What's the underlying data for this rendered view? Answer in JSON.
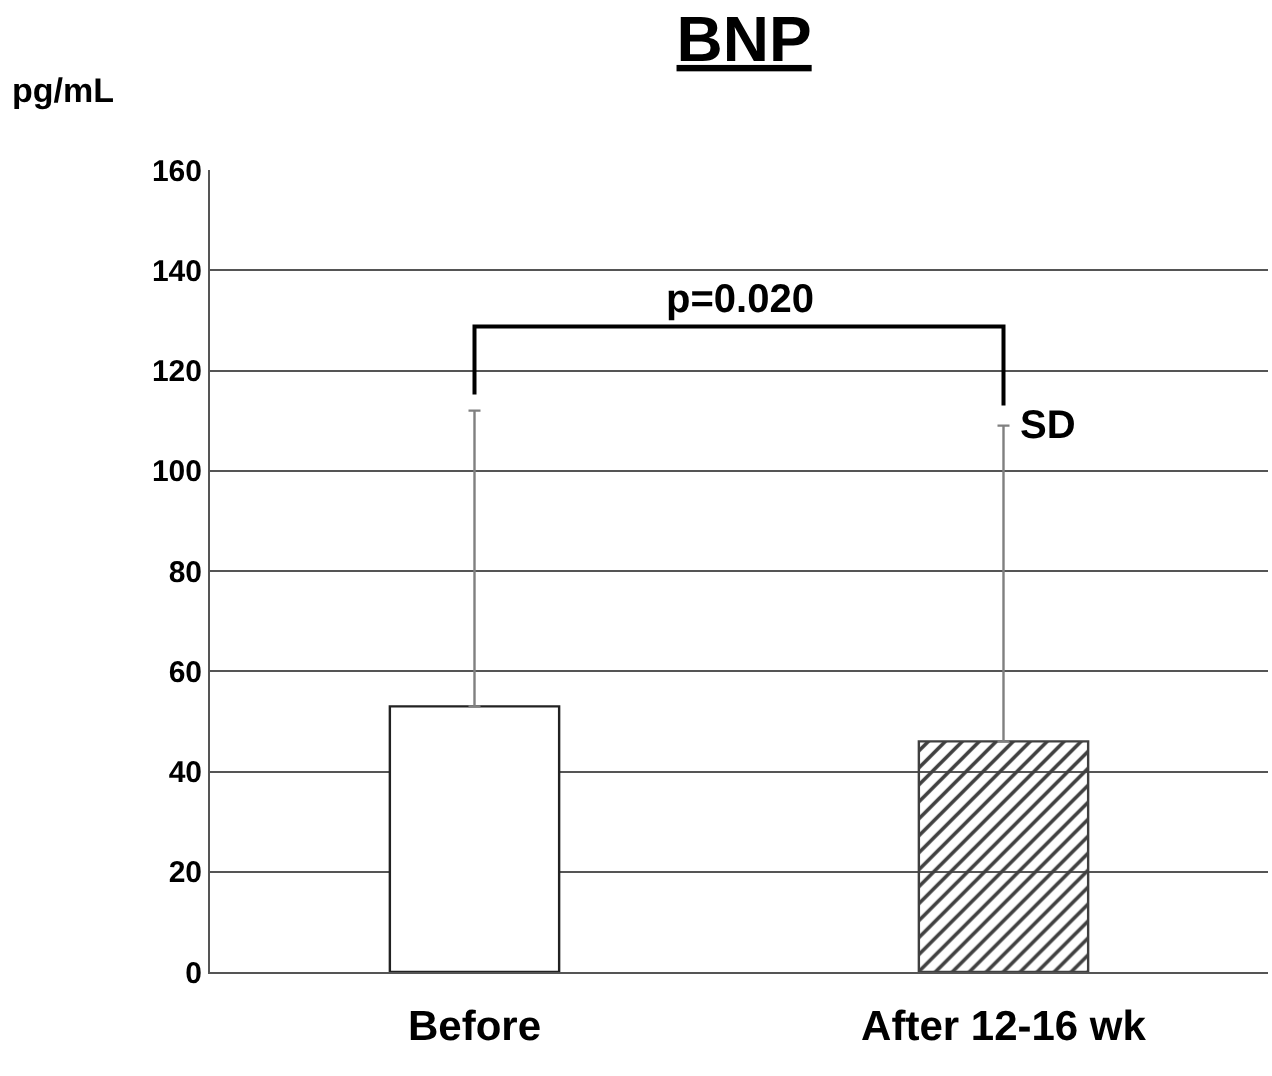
{
  "chart_data": {
    "type": "bar",
    "title": "BNP",
    "ylabel": "pg/mL",
    "categories": [
      "Before",
      "After 12-16 wk"
    ],
    "values": [
      53,
      46
    ],
    "colors": [
      "#ffffff",
      "#404040"
    ],
    "errors": [
      [
        53,
        112
      ],
      [
        46,
        109
      ]
    ],
    "ylim": [
      0,
      160
    ],
    "yticks": [
      0,
      20,
      40,
      60,
      80,
      100,
      120,
      140,
      160
    ],
    "grid": "y",
    "annotations": [
      "p=0.020",
      {
        "text": "SD",
        "x": "After 12-16 wk",
        "y": 109
      }
    ]
  }
}
